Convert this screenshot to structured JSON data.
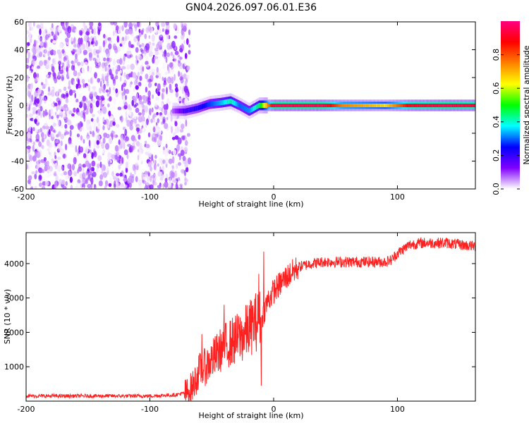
{
  "title": "GN04.2026.097.06.01.E36",
  "chart_data": [
    {
      "type": "heatmap",
      "name": "spectrogram",
      "xlabel": "Height of straight line (km)",
      "ylabel": "Frequency (Hz)",
      "xlim": [
        -200,
        163
      ],
      "ylim": [
        -60,
        60
      ],
      "xticks": [
        -200,
        -100,
        0,
        100
      ],
      "yticks": [
        60,
        40,
        20,
        0,
        -20,
        -40,
        -60
      ],
      "noise_region_x": [
        -200,
        -72
      ],
      "signal_track": [
        {
          "x": -82,
          "y": -4,
          "a": 0.08
        },
        {
          "x": -72,
          "y": -4,
          "a": 0.18
        },
        {
          "x": -62,
          "y": -2,
          "a": 0.22
        },
        {
          "x": -52,
          "y": 1,
          "a": 0.28
        },
        {
          "x": -42,
          "y": 2,
          "a": 0.35
        },
        {
          "x": -35,
          "y": 3,
          "a": 0.42
        },
        {
          "x": -28,
          "y": 0,
          "a": 0.3
        },
        {
          "x": -20,
          "y": -4,
          "a": 0.32
        },
        {
          "x": -12,
          "y": 0,
          "a": 0.45
        },
        {
          "x": 0,
          "y": 0,
          "a": 0.95
        },
        {
          "x": 40,
          "y": 0,
          "a": 0.95
        },
        {
          "x": 55,
          "y": 0,
          "a": 0.75
        },
        {
          "x": 75,
          "y": 0,
          "a": 0.7
        },
        {
          "x": 90,
          "y": 0,
          "a": 0.65
        },
        {
          "x": 110,
          "y": 0,
          "a": 0.9
        },
        {
          "x": 140,
          "y": 0,
          "a": 0.95
        },
        {
          "x": 163,
          "y": 0,
          "a": 0.92
        }
      ],
      "colorbar": {
        "label": "Normalized spectral amplitude",
        "range": [
          0,
          1
        ],
        "ticks": [
          0.0,
          0.2,
          0.4,
          0.6,
          0.8
        ],
        "tick_labels": [
          "0.0",
          "0.2",
          "0.4",
          "0.6",
          "0.8"
        ],
        "colors": [
          "#ffffff",
          "#8000ff",
          "#0000ff",
          "#00ffff",
          "#00ff00",
          "#ffff00",
          "#ff8000",
          "#ff0000",
          "#ff0080"
        ]
      }
    },
    {
      "type": "line",
      "name": "snr",
      "xlabel": "Height of straight line (km)",
      "ylabel": "SNR (10 * v/v)",
      "xlim": [
        -200,
        163
      ],
      "ylim": [
        0,
        4900
      ],
      "xticks": [
        -200,
        -100,
        0,
        100
      ],
      "yticks": [
        1000,
        2000,
        3000,
        4000
      ],
      "series": [
        {
          "name": "SNR",
          "color": "#ff2020",
          "x": [
            -200,
            -180,
            -160,
            -140,
            -120,
            -100,
            -80,
            -70,
            -65,
            -60,
            -55,
            -50,
            -45,
            -40,
            -35,
            -30,
            -25,
            -20,
            -15,
            -10,
            -5,
            0,
            10,
            20,
            30,
            40,
            50,
            60,
            70,
            80,
            90,
            95,
            100,
            110,
            120,
            130,
            140,
            150,
            163
          ],
          "y": [
            150,
            150,
            150,
            150,
            150,
            150,
            180,
            250,
            450,
            900,
            1000,
            1200,
            1400,
            1600,
            1700,
            1800,
            1900,
            2100,
            2300,
            2400,
            2900,
            3200,
            3600,
            3900,
            4000,
            4050,
            4050,
            4050,
            4050,
            4050,
            4050,
            4100,
            4300,
            4550,
            4600,
            4600,
            4600,
            4550,
            4500
          ]
        }
      ],
      "spikes": [
        {
          "x": -8,
          "y": 4350
        },
        {
          "x": -12,
          "y": 3700
        },
        {
          "x": -10,
          "y": 450
        },
        {
          "x": -40,
          "y": 2800
        },
        {
          "x": -58,
          "y": 1950
        }
      ]
    }
  ]
}
